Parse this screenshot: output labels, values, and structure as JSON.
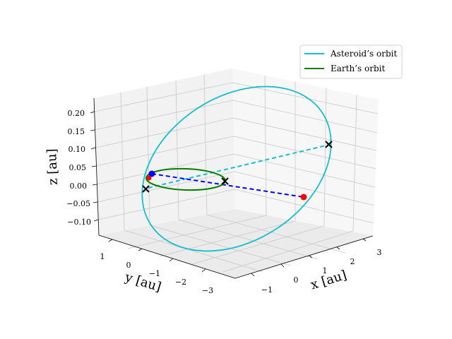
{
  "chart_data": {
    "type": "line3d",
    "title": "",
    "axes": {
      "x": {
        "label": "x [au]",
        "ticks": [
          "−1",
          "0",
          "1",
          "2",
          "3"
        ]
      },
      "y": {
        "label": "y [au]",
        "ticks": [
          "1",
          "0",
          "−1",
          "−2",
          "−3"
        ]
      },
      "z": {
        "label": "z [au]",
        "ticks": [
          "0.20",
          "0.15",
          "0.10",
          "0.05",
          "0.00",
          "−0.05",
          "−0.10"
        ]
      }
    },
    "legend": {
      "placement": "top-right",
      "entries": [
        {
          "label": "Asteroid’s orbit",
          "color": "#17becf"
        },
        {
          "label": "Earth’s orbit",
          "color": "#008000"
        }
      ]
    },
    "series": [
      {
        "name": "Asteroid’s orbit",
        "kind": "closed-ellipse",
        "color": "#17becf"
      },
      {
        "name": "Earth’s orbit",
        "kind": "closed-ellipse",
        "color": "#008000"
      }
    ],
    "markers": [
      {
        "name": "asteroid-node-ascending",
        "symbol": "x",
        "color": "#000000"
      },
      {
        "name": "asteroid-position",
        "symbol": "dot",
        "color": "#ff0000"
      },
      {
        "name": "earth-position",
        "symbol": "dot",
        "color": "#0000ff"
      },
      {
        "name": "node-line-end",
        "symbol": "x",
        "color": "#000000"
      }
    ]
  }
}
